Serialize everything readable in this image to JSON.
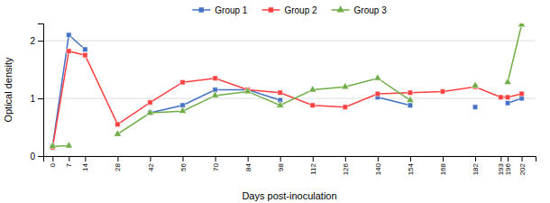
{
  "chart_data": {
    "type": "line",
    "x_label": "Days post-inoculation",
    "y_label": "Optical density",
    "x": [
      0,
      7,
      14,
      28,
      42,
      56,
      70,
      84,
      98,
      112,
      126,
      140,
      154,
      168,
      182,
      193,
      196,
      202
    ],
    "series": [
      {
        "name": "Group 1",
        "color": "#4472C4",
        "marker": "square",
        "values": [
          0.17,
          2.1,
          1.85,
          null,
          0.75,
          0.88,
          1.15,
          1.15,
          0.97,
          null,
          null,
          1.02,
          0.88,
          null,
          0.85,
          null,
          0.92,
          1.0
        ]
      },
      {
        "name": "Group 2",
        "color": "#FF4040",
        "marker": "square",
        "values": [
          0.15,
          1.82,
          1.75,
          0.55,
          0.93,
          1.28,
          1.35,
          1.15,
          1.1,
          0.88,
          0.85,
          1.08,
          1.1,
          1.12,
          1.2,
          1.02,
          1.02,
          1.08
        ]
      },
      {
        "name": "Group 3",
        "color": "#70AD47",
        "marker": "triangle",
        "values": [
          0.17,
          0.18,
          null,
          0.38,
          0.75,
          0.78,
          1.05,
          1.12,
          0.88,
          1.15,
          1.2,
          1.35,
          0.97,
          null,
          1.22,
          null,
          1.28,
          2.28
        ]
      }
    ],
    "xlim": [
      -4,
      208
    ],
    "xticks": [
      0,
      7,
      14,
      28,
      42,
      56,
      70,
      84,
      98,
      112,
      126,
      140,
      154,
      168,
      182,
      193,
      196,
      202
    ],
    "ylim": [
      0,
      2.3
    ],
    "yticks": [
      0,
      1,
      2
    ],
    "grid": true,
    "legend": "top"
  }
}
